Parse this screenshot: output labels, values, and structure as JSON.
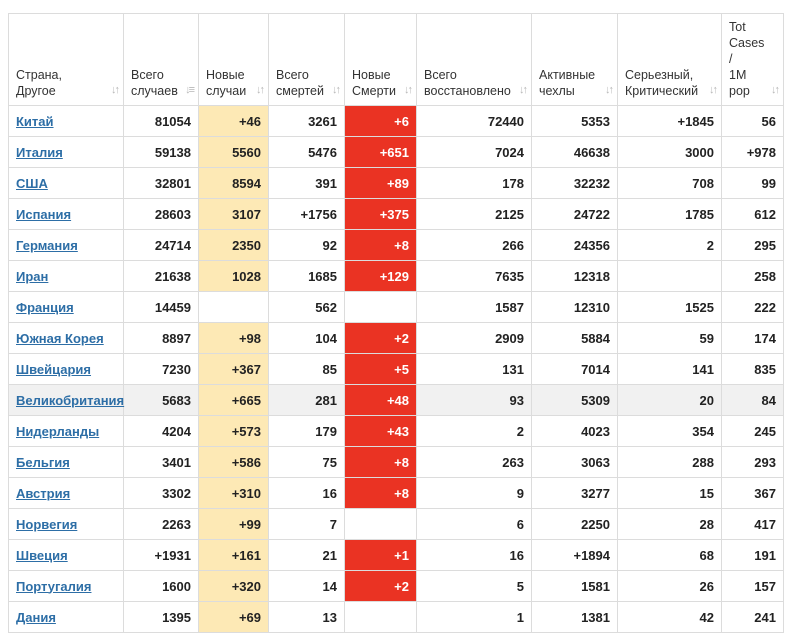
{
  "headers": [
    {
      "label": "Страна,\nДругое"
    },
    {
      "label": "Всего\nслучаев"
    },
    {
      "label": "Новые\nслучаи"
    },
    {
      "label": "Всего\nсмертей"
    },
    {
      "label": "Новые\nСмерти"
    },
    {
      "label": "Всего\nвосстановлено"
    },
    {
      "label": "Активные\nчехлы"
    },
    {
      "label": "Серьезный,\nКритический"
    },
    {
      "label": "Tot\nCases\n/\n1M\npop"
    }
  ],
  "rows": [
    {
      "country": "Китай",
      "total": "81054",
      "new_cases": "+46",
      "deaths": "3261",
      "new_deaths": "+6",
      "recovered": "72440",
      "active": "5353",
      "critical": "+1845",
      "per_million": "56"
    },
    {
      "country": "Италия",
      "total": "59138",
      "new_cases": "5560",
      "deaths": "5476",
      "new_deaths": "+651",
      "recovered": "7024",
      "active": "46638",
      "critical": "3000",
      "per_million": "+978"
    },
    {
      "country": "США",
      "total": "32801",
      "new_cases": "8594",
      "deaths": "391",
      "new_deaths": "+89",
      "recovered": "178",
      "active": "32232",
      "critical": "708",
      "per_million": "99"
    },
    {
      "country": "Испания",
      "total": "28603",
      "new_cases": "3107",
      "deaths": "+1756",
      "new_deaths": "+375",
      "recovered": "2125",
      "active": "24722",
      "critical": "1785",
      "per_million": "612"
    },
    {
      "country": "Германия",
      "total": "24714",
      "new_cases": "2350",
      "deaths": "92",
      "new_deaths": "+8",
      "recovered": "266",
      "active": "24356",
      "critical": "2",
      "per_million": "295"
    },
    {
      "country": "Иран",
      "total": "21638",
      "new_cases": "1028",
      "deaths": "1685",
      "new_deaths": "+129",
      "recovered": "7635",
      "active": "12318",
      "critical": "",
      "per_million": "258"
    },
    {
      "country": "Франция",
      "total": "14459",
      "new_cases": "",
      "deaths": "562",
      "new_deaths": "",
      "recovered": "1587",
      "active": "12310",
      "critical": "1525",
      "per_million": "222"
    },
    {
      "country": "Южная Корея",
      "total": "8897",
      "new_cases": "+98",
      "deaths": "104",
      "new_deaths": "+2",
      "recovered": "2909",
      "active": "5884",
      "critical": "59",
      "per_million": "174"
    },
    {
      "country": "Швейцария",
      "total": "7230",
      "new_cases": "+367",
      "deaths": "85",
      "new_deaths": "+5",
      "recovered": "131",
      "active": "7014",
      "critical": "141",
      "per_million": "835"
    },
    {
      "country": "Великобритания",
      "total": "5683",
      "new_cases": "+665",
      "deaths": "281",
      "new_deaths": "+48",
      "recovered": "93",
      "active": "5309",
      "critical": "20",
      "per_million": "84",
      "highlight": true
    },
    {
      "country": "Нидерланды",
      "total": "4204",
      "new_cases": "+573",
      "deaths": "179",
      "new_deaths": "+43",
      "recovered": "2",
      "active": "4023",
      "critical": "354",
      "per_million": "245"
    },
    {
      "country": "Бельгия",
      "total": "3401",
      "new_cases": "+586",
      "deaths": "75",
      "new_deaths": "+8",
      "recovered": "263",
      "active": "3063",
      "critical": "288",
      "per_million": "293"
    },
    {
      "country": "Австрия",
      "total": "3302",
      "new_cases": "+310",
      "deaths": "16",
      "new_deaths": "+8",
      "recovered": "9",
      "active": "3277",
      "critical": "15",
      "per_million": "367"
    },
    {
      "country": "Норвегия",
      "total": "2263",
      "new_cases": "+99",
      "deaths": "7",
      "new_deaths": "",
      "recovered": "6",
      "active": "2250",
      "critical": "28",
      "per_million": "417"
    },
    {
      "country": "Швеция",
      "total": "+1931",
      "new_cases": "+161",
      "deaths": "21",
      "new_deaths": "+1",
      "recovered": "16",
      "active": "+1894",
      "critical": "68",
      "per_million": "191"
    },
    {
      "country": "Португалия",
      "total": "1600",
      "new_cases": "+320",
      "deaths": "14",
      "new_deaths": "+2",
      "recovered": "5",
      "active": "1581",
      "critical": "26",
      "per_million": "157"
    },
    {
      "country": "Дания",
      "total": "1395",
      "new_cases": "+69",
      "deaths": "13",
      "new_deaths": "",
      "recovered": "1",
      "active": "1381",
      "critical": "42",
      "per_million": "241"
    }
  ],
  "colors": {
    "new_cases_bg": "#fde9b5",
    "new_deaths_bg": "#ea3323",
    "link": "#2d6ea6",
    "highlight_row": "#f1f1f1"
  },
  "icons": {
    "sort_neutral": "sort-arrows-icon",
    "sort_desc": "sort-desc-icon"
  }
}
